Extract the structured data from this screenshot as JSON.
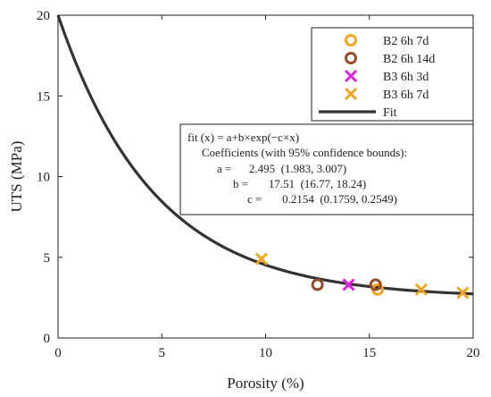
{
  "chart_data": {
    "type": "scatter",
    "xlabel": "Porosity (%)",
    "ylabel": "UTS (MPa)",
    "xlim": [
      0,
      20
    ],
    "ylim": [
      0,
      20
    ],
    "xticks": [
      "0",
      "5",
      "10",
      "15",
      "20"
    ],
    "yticks": [
      "0",
      "5",
      "10",
      "15",
      "20"
    ],
    "grid": false,
    "legend_position": "top-right",
    "series": [
      {
        "name": "B2 6h 7d",
        "marker": "circle",
        "color": "#f5a51c",
        "points": [
          [
            15.4,
            3.0
          ]
        ]
      },
      {
        "name": "B2 6h 14d",
        "marker": "circle",
        "color": "#9a4a2a",
        "points": [
          [
            12.5,
            3.3
          ],
          [
            15.3,
            3.3
          ]
        ]
      },
      {
        "name": "B3 6h 3d",
        "marker": "x",
        "color": "#e020e0",
        "points": [
          [
            14.0,
            3.3
          ]
        ]
      },
      {
        "name": "B3 6h 7d",
        "marker": "x",
        "color": "#f5a51c",
        "points": [
          [
            9.8,
            4.9
          ],
          [
            17.5,
            3.0
          ],
          [
            19.5,
            2.8
          ]
        ]
      }
    ],
    "fit": {
      "name": "Fit",
      "color": "#333333",
      "a": 2.495,
      "b": 17.51,
      "c": 0.2154,
      "lines": [
        "fit (x) = a+b×exp(−c×x)",
        "Coefficients (with 95% confidence bounds):",
        "a =      2.495  (1.983, 3.007)",
        "b =       17.51  (16.77, 18.24)",
        "c =       0.2154  (0.1759, 0.2549)"
      ]
    }
  }
}
